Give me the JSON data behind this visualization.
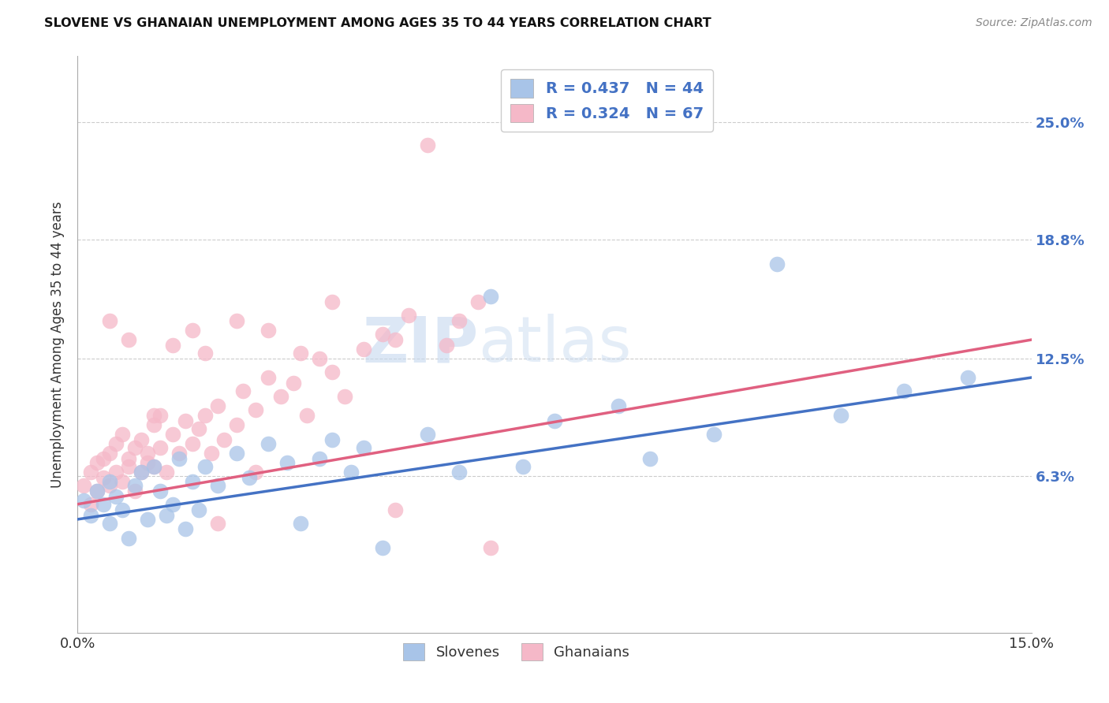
{
  "title": "SLOVENE VS GHANAIAN UNEMPLOYMENT AMONG AGES 35 TO 44 YEARS CORRELATION CHART",
  "source": "Source: ZipAtlas.com",
  "ylabel": "Unemployment Among Ages 35 to 44 years",
  "ytick_labels": [
    "6.3%",
    "12.5%",
    "18.8%",
    "25.0%"
  ],
  "ytick_values": [
    0.063,
    0.125,
    0.188,
    0.25
  ],
  "xlim": [
    0.0,
    0.15
  ],
  "ylim": [
    -0.02,
    0.285
  ],
  "blue_color": "#A8C4E8",
  "pink_color": "#F5B8C8",
  "blue_line_color": "#4472C4",
  "pink_line_color": "#E06080",
  "legend_blue_R": "R = 0.437",
  "legend_blue_N": "N = 44",
  "legend_pink_R": "R = 0.324",
  "legend_pink_N": "N = 67",
  "slovene_x": [
    0.001,
    0.002,
    0.003,
    0.004,
    0.005,
    0.005,
    0.006,
    0.007,
    0.008,
    0.009,
    0.01,
    0.011,
    0.012,
    0.013,
    0.014,
    0.015,
    0.016,
    0.017,
    0.018,
    0.019,
    0.02,
    0.022,
    0.025,
    0.027,
    0.03,
    0.033,
    0.035,
    0.038,
    0.04,
    0.043,
    0.045,
    0.048,
    0.055,
    0.06,
    0.065,
    0.07,
    0.075,
    0.085,
    0.09,
    0.1,
    0.11,
    0.12,
    0.13,
    0.14
  ],
  "slovene_y": [
    0.05,
    0.042,
    0.055,
    0.048,
    0.038,
    0.06,
    0.052,
    0.045,
    0.03,
    0.058,
    0.065,
    0.04,
    0.068,
    0.055,
    0.042,
    0.048,
    0.072,
    0.035,
    0.06,
    0.045,
    0.068,
    0.058,
    0.075,
    0.062,
    0.08,
    0.07,
    0.038,
    0.072,
    0.082,
    0.065,
    0.078,
    0.025,
    0.085,
    0.065,
    0.158,
    0.068,
    0.092,
    0.1,
    0.072,
    0.085,
    0.175,
    0.095,
    0.108,
    0.115
  ],
  "ghanaian_x": [
    0.001,
    0.002,
    0.002,
    0.003,
    0.003,
    0.004,
    0.004,
    0.005,
    0.005,
    0.006,
    0.006,
    0.007,
    0.007,
    0.008,
    0.008,
    0.009,
    0.009,
    0.01,
    0.01,
    0.011,
    0.011,
    0.012,
    0.012,
    0.013,
    0.013,
    0.014,
    0.015,
    0.016,
    0.017,
    0.018,
    0.019,
    0.02,
    0.021,
    0.022,
    0.023,
    0.025,
    0.026,
    0.028,
    0.03,
    0.032,
    0.034,
    0.036,
    0.038,
    0.04,
    0.042,
    0.045,
    0.048,
    0.05,
    0.052,
    0.055,
    0.058,
    0.06,
    0.063,
    0.065,
    0.03,
    0.035,
    0.025,
    0.04,
    0.028,
    0.05,
    0.02,
    0.015,
    0.018,
    0.022,
    0.012,
    0.008,
    0.005
  ],
  "ghanaian_y": [
    0.058,
    0.065,
    0.048,
    0.07,
    0.055,
    0.062,
    0.072,
    0.058,
    0.075,
    0.065,
    0.08,
    0.06,
    0.085,
    0.072,
    0.068,
    0.078,
    0.055,
    0.082,
    0.065,
    0.07,
    0.075,
    0.09,
    0.068,
    0.078,
    0.095,
    0.065,
    0.085,
    0.075,
    0.092,
    0.08,
    0.088,
    0.095,
    0.075,
    0.1,
    0.082,
    0.09,
    0.108,
    0.098,
    0.115,
    0.105,
    0.112,
    0.095,
    0.125,
    0.118,
    0.105,
    0.13,
    0.138,
    0.135,
    0.148,
    0.238,
    0.132,
    0.145,
    0.155,
    0.025,
    0.14,
    0.128,
    0.145,
    0.155,
    0.065,
    0.045,
    0.128,
    0.132,
    0.14,
    0.038,
    0.095,
    0.135,
    0.145
  ]
}
